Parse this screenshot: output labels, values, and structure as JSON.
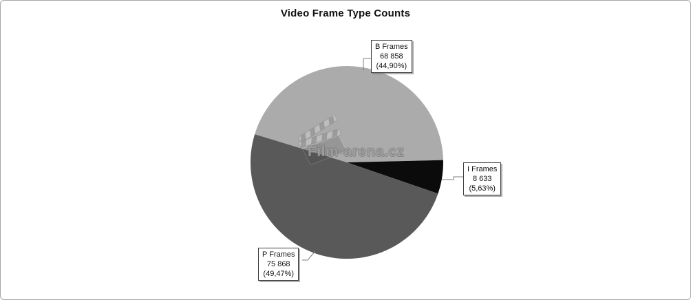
{
  "window": {
    "background": "#ffffff",
    "border_color": "#a6a6a6"
  },
  "watermark": {
    "text": "Film-arena.cz",
    "icon": "clapperboard"
  },
  "chart_data": {
    "type": "pie",
    "title": "Video Frame Type Counts",
    "slices": [
      {
        "name": "B Frames",
        "value": 68858,
        "count_label": "68 858",
        "percent": 44.9,
        "percent_label": "(44,90%)",
        "color": "#ababab"
      },
      {
        "name": "I Frames",
        "value": 8633,
        "count_label": "8 633",
        "percent": 5.63,
        "percent_label": "(5,63%)",
        "color": "#0b0b0b"
      },
      {
        "name": "P Frames",
        "value": 75868,
        "count_label": "75 868",
        "percent": 49.47,
        "percent_label": "(49,47%)",
        "color": "#595959"
      }
    ],
    "layout": {
      "start_angle_deg": -73,
      "direction": "clockwise",
      "legend": "none",
      "label_style": "callout-boxes"
    }
  }
}
